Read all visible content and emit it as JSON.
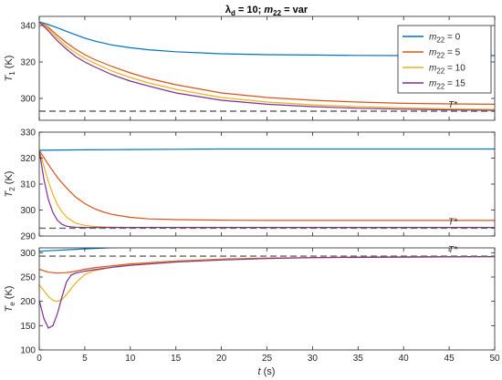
{
  "chart_data": {
    "type": "line",
    "title": {
      "lambda": "λ",
      "lambda_sub": "d",
      "mid": " = 10; ",
      "m": "m",
      "m_sub": "22",
      "end": " = var"
    },
    "xlabel": {
      "var": "t",
      "unit": " (s)"
    },
    "xlim": [
      0,
      50
    ],
    "x_ticks": [
      0,
      5,
      10,
      15,
      20,
      25,
      30,
      35,
      40,
      45,
      50
    ],
    "series_colors": [
      "#0072BD",
      "#D95319",
      "#EDB120",
      "#7E2F8E"
    ],
    "reference_color": "#666666",
    "legend": {
      "placement": "top-right",
      "entries": [
        {
          "var": "m",
          "sub": "22",
          "rest": " = 0"
        },
        {
          "var": "m",
          "sub": "22",
          "rest": " = 5"
        },
        {
          "var": "m",
          "sub": "22",
          "rest": " = 10"
        },
        {
          "var": "m",
          "sub": "22",
          "rest": " = 15"
        }
      ]
    },
    "panels": [
      {
        "ylabel": {
          "var": "T",
          "sub": "1",
          "unit": " (K)"
        },
        "ylim": [
          288,
          345
        ],
        "y_ticks": [
          300,
          320,
          340
        ],
        "ref": {
          "value": 293,
          "label": "T*"
        },
        "series": [
          {
            "x": [
              0,
              1,
              2,
              3,
              4,
              5,
              6,
              8,
              10,
              12,
              15,
              20,
              25,
              30,
              35,
              40,
              45,
              50
            ],
            "y": [
              342,
              340.5,
              338.7,
              336.8,
              334.9,
              333.1,
              331.6,
              329.3,
              327.8,
              326.7,
              325.6,
              324.5,
              324.0,
              323.8,
              323.6,
              323.5,
              323.5,
              323.5
            ]
          },
          {
            "x": [
              0,
              1,
              2,
              3,
              4,
              5,
              6,
              8,
              10,
              12,
              15,
              20,
              25,
              30,
              35,
              40,
              45,
              50
            ],
            "y": [
              342,
              339,
              334.5,
              330.5,
              327,
              324,
              321.5,
              317.5,
              314,
              311,
              307.5,
              303,
              300.5,
              299,
              298,
              297.3,
              297,
              296.8
            ]
          },
          {
            "x": [
              0,
              1,
              2,
              3,
              4,
              5,
              6,
              8,
              10,
              12,
              15,
              20,
              25,
              30,
              35,
              40,
              45,
              50
            ],
            "y": [
              342,
              338,
              333,
              328.5,
              325,
              322,
              319.5,
              315,
              311.5,
              308.5,
              305,
              300.5,
              298,
              296.5,
              295.5,
              294.8,
              294.3,
              294
            ]
          },
          {
            "x": [
              0,
              1,
              2,
              3,
              4,
              5,
              6,
              8,
              10,
              12,
              15,
              20,
              25,
              30,
              35,
              40,
              45,
              50
            ],
            "y": [
              342,
              337,
              331.5,
              327,
              323,
              320,
              317.5,
              313,
              309.5,
              306.8,
              303,
              299,
              296.8,
              295.5,
              294.6,
              294.1,
              293.7,
              293.4
            ]
          }
        ]
      },
      {
        "ylabel": {
          "var": "T",
          "sub": "2",
          "unit": " (K)"
        },
        "ylim": [
          290,
          330
        ],
        "y_ticks": [
          290,
          300,
          310,
          320,
          330
        ],
        "ref": {
          "value": 293,
          "label": "T*"
        },
        "series": [
          {
            "x": [
              0,
              5,
              10,
              15,
              20,
              25,
              30,
              35,
              40,
              45,
              50
            ],
            "y": [
              323,
              323.2,
              323.3,
              323.4,
              323.5,
              323.5,
              323.5,
              323.5,
              323.5,
              323.5,
              323.5
            ]
          },
          {
            "x": [
              0,
              1,
              2,
              3,
              4,
              5,
              6,
              7,
              8,
              10,
              12,
              15,
              20,
              25,
              30,
              35,
              40,
              45,
              50
            ],
            "y": [
              323,
              317.5,
              312.5,
              308.5,
              305,
              302.5,
              300.6,
              299.3,
              298.3,
              297.2,
              296.6,
              296.3,
              296.1,
              296,
              296,
              296,
              296,
              296,
              296
            ]
          },
          {
            "x": [
              0,
              0.5,
              1,
              1.5,
              2,
              2.5,
              3,
              4,
              5,
              6,
              7,
              8,
              10,
              15,
              20,
              30,
              40,
              50
            ],
            "y": [
              323,
              317,
              311,
              306,
              302,
              299.3,
              297.3,
              295,
              294.1,
              293.7,
              293.5,
              293.4,
              293.3,
              293.3,
              293.3,
              293.3,
              293.3,
              293.3
            ]
          },
          {
            "x": [
              0,
              0.5,
              1,
              1.5,
              2,
              2.5,
              3,
              3.5,
              4,
              5,
              6,
              8,
              10,
              20,
              30,
              40,
              50
            ],
            "y": [
              323,
              312,
              304,
              299,
              296,
              294.5,
              293.8,
              293.5,
              293.4,
              293.3,
              293.3,
              293.3,
              293.3,
              293.3,
              293.3,
              293.3,
              293.3
            ]
          }
        ]
      },
      {
        "ylabel": {
          "var": "T",
          "sub": "e",
          "unit": " (K)"
        },
        "ylim": [
          100,
          310
        ],
        "y_ticks": [
          100,
          150,
          200,
          250,
          300
        ],
        "ref": {
          "value": 293,
          "label": "T*"
        },
        "series": [
          {
            "x": [
              0,
              5,
              10,
              15,
              20,
              25,
              30,
              35,
              40,
              45,
              50
            ],
            "y": [
              303,
              308,
              312,
              314,
              316,
              317,
              317.5,
              318,
              318,
              318,
              318
            ]
          },
          {
            "x": [
              0,
              1,
              2,
              3,
              4,
              5,
              6,
              8,
              10,
              15,
              20,
              25,
              30,
              35,
              40,
              45,
              50
            ],
            "y": [
              266,
              260,
              258,
              259,
              262,
              266,
              269,
              273,
              277,
              283,
              287,
              289,
              290,
              291,
              291.5,
              292,
              292
            ]
          },
          {
            "x": [
              0,
              0.5,
              1,
              1.5,
              2,
              2.5,
              3,
              4,
              5,
              6,
              8,
              10,
              15,
              20,
              25,
              30,
              40,
              50
            ],
            "y": [
              234,
              222,
              210,
              202,
              200,
              204,
              214,
              238,
              255,
              263,
              270,
              275,
              282,
              286,
              288,
              290,
              291,
              292
            ]
          },
          {
            "x": [
              0,
              0.5,
              1,
              1.5,
              2,
              2.5,
              3,
              3.5,
              4,
              5,
              6,
              8,
              10,
              15,
              20,
              25,
              30,
              40,
              50
            ],
            "y": [
              202,
              165,
              145,
              150,
              175,
              210,
              240,
              254,
              258,
              262,
              265,
              270,
              274,
              281,
              285,
              288,
              290,
              291,
              292
            ]
          }
        ]
      }
    ]
  }
}
